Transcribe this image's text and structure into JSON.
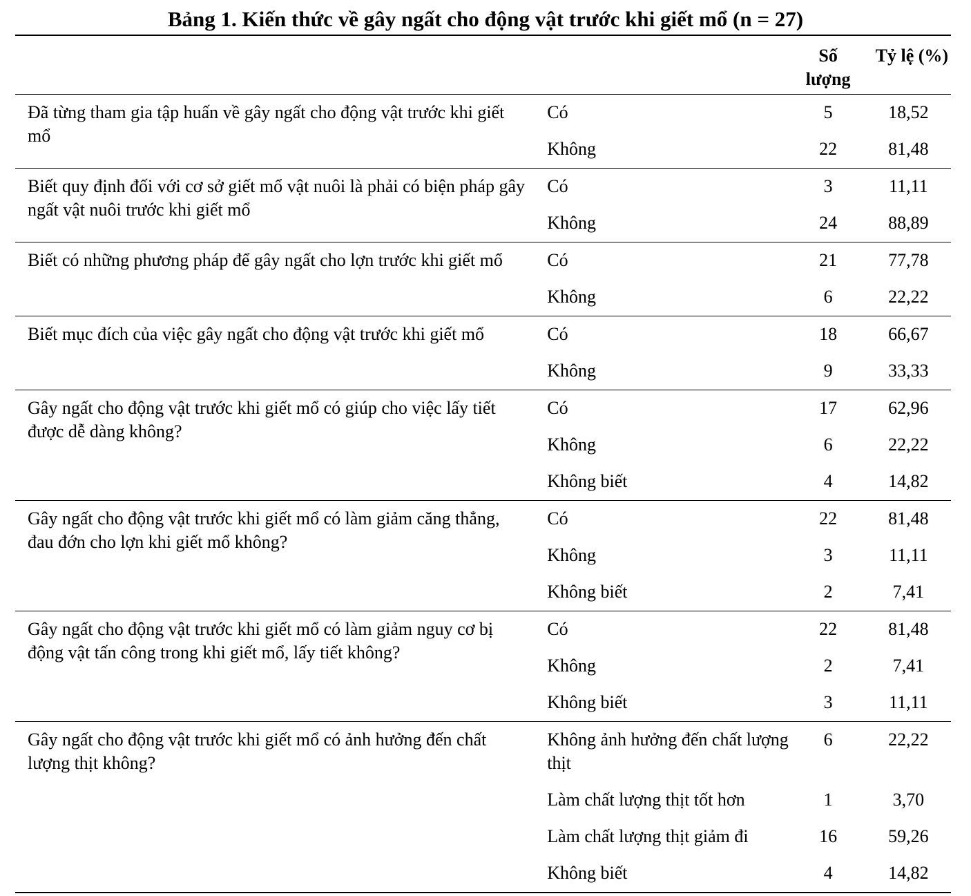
{
  "title": "Bảng 1. Kiến thức về gây ngất cho động vật trước khi giết mổ (n = 27)",
  "headers": {
    "count": "Số lượng",
    "percent": "Tỷ lệ (%)"
  },
  "groups": [
    {
      "question": "Đã từng tham gia tập huấn về gây ngất cho động vật trước khi giết mổ",
      "answers": [
        {
          "label": "Có",
          "count": "5",
          "percent": "18,52"
        },
        {
          "label": "Không",
          "count": "22",
          "percent": "81,48"
        }
      ]
    },
    {
      "question": "Biết quy định đối với cơ sở giết mổ vật nuôi là phải có biện pháp gây ngất vật nuôi trước khi giết mổ",
      "answers": [
        {
          "label": "Có",
          "count": "3",
          "percent": "11,11"
        },
        {
          "label": "Không",
          "count": "24",
          "percent": "88,89"
        }
      ]
    },
    {
      "question": "Biết có những phương pháp để gây ngất cho lợn trước khi giết mổ",
      "answers": [
        {
          "label": "Có",
          "count": "21",
          "percent": "77,78"
        },
        {
          "label": "Không",
          "count": "6",
          "percent": "22,22"
        }
      ]
    },
    {
      "question": "Biết mục đích của việc gây ngất cho động vật trước khi giết mổ",
      "answers": [
        {
          "label": "Có",
          "count": "18",
          "percent": "66,67"
        },
        {
          "label": "Không",
          "count": "9",
          "percent": "33,33"
        }
      ]
    },
    {
      "question": "Gây ngất cho động vật trước khi giết mổ có giúp cho việc lấy tiết được dễ dàng không?",
      "answers": [
        {
          "label": "Có",
          "count": "17",
          "percent": "62,96"
        },
        {
          "label": "Không",
          "count": "6",
          "percent": "22,22"
        },
        {
          "label": "Không biết",
          "count": "4",
          "percent": "14,82"
        }
      ]
    },
    {
      "question": "Gây ngất cho động vật trước khi giết mổ có làm giảm căng thẳng, đau đớn cho lợn khi giết mổ không?",
      "answers": [
        {
          "label": "Có",
          "count": "22",
          "percent": "81,48"
        },
        {
          "label": "Không",
          "count": "3",
          "percent": "11,11"
        },
        {
          "label": "Không biết",
          "count": "2",
          "percent": "7,41"
        }
      ]
    },
    {
      "question": "Gây ngất cho động vật trước khi giết mổ có làm giảm nguy cơ bị động vật tấn công trong khi giết mổ, lấy tiết không?",
      "answers": [
        {
          "label": "Có",
          "count": "22",
          "percent": "81,48"
        },
        {
          "label": "Không",
          "count": "2",
          "percent": "7,41"
        },
        {
          "label": "Không biết",
          "count": "3",
          "percent": "11,11"
        }
      ]
    },
    {
      "question": "Gây ngất cho động vật trước khi giết mổ có ảnh hưởng đến chất lượng thịt không?",
      "answers": [
        {
          "label": "Không ảnh hưởng đến chất lượng thịt",
          "count": "6",
          "percent": "22,22"
        },
        {
          "label": "Làm chất lượng thịt tốt hơn",
          "count": "1",
          "percent": "3,70"
        },
        {
          "label": "Làm chất lượng thịt giảm đi",
          "count": "16",
          "percent": "59,26"
        },
        {
          "label": "Không biết",
          "count": "4",
          "percent": "14,82"
        }
      ]
    }
  ]
}
